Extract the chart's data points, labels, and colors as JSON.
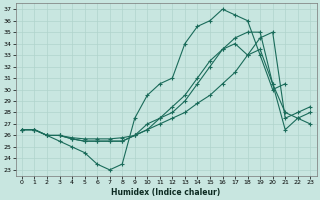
{
  "bg_color": "#c8e6e0",
  "grid_color": "#b0d4cc",
  "line_color": "#1a6b5a",
  "xlabel": "Humidex (Indice chaleur)",
  "xlim": [
    -0.5,
    23.5
  ],
  "ylim": [
    22.5,
    37.5
  ],
  "yticks": [
    23,
    24,
    25,
    26,
    27,
    28,
    29,
    30,
    31,
    32,
    33,
    34,
    35,
    36,
    37
  ],
  "xticks": [
    0,
    1,
    2,
    3,
    4,
    5,
    6,
    7,
    8,
    9,
    10,
    11,
    12,
    13,
    14,
    15,
    16,
    17,
    18,
    19,
    20,
    21,
    22,
    23
  ],
  "lines": [
    {
      "x": [
        0,
        1,
        2,
        3,
        4,
        5,
        6,
        7,
        8,
        9,
        10,
        11,
        12,
        13,
        14,
        15,
        16,
        17,
        18,
        19,
        20,
        21
      ],
      "y": [
        26.5,
        26.5,
        26.0,
        25.5,
        25.0,
        24.5,
        23.5,
        23.0,
        23.5,
        27.5,
        29.5,
        30.5,
        31.0,
        34.0,
        35.5,
        36.0,
        37.0,
        36.5,
        36.0,
        33.0,
        30.0,
        30.5
      ]
    },
    {
      "x": [
        0,
        1,
        2,
        3,
        4,
        5,
        6,
        7,
        8,
        9,
        10,
        11,
        12,
        13,
        14,
        15,
        16,
        17,
        18,
        19,
        20,
        21,
        22,
        23
      ],
      "y": [
        26.5,
        26.5,
        26.0,
        26.0,
        25.7,
        25.5,
        25.5,
        25.5,
        25.5,
        26.0,
        26.5,
        27.5,
        28.5,
        29.5,
        31.0,
        32.5,
        33.5,
        34.0,
        33.0,
        33.5,
        30.5,
        28.0,
        27.5,
        27.0
      ]
    },
    {
      "x": [
        0,
        1,
        2,
        3,
        4,
        5,
        6,
        7,
        8,
        9,
        10,
        11,
        12,
        13,
        14,
        15,
        16,
        17,
        18,
        19,
        20,
        21,
        22,
        23
      ],
      "y": [
        26.5,
        26.5,
        26.0,
        26.0,
        25.7,
        25.5,
        25.5,
        25.5,
        25.5,
        26.0,
        27.0,
        27.5,
        28.0,
        29.0,
        30.5,
        32.0,
        33.5,
        34.5,
        35.0,
        35.0,
        30.5,
        26.5,
        27.5,
        28.0
      ]
    }
  ],
  "line4": {
    "x": [
      0,
      1,
      2,
      3,
      4,
      5,
      6,
      7,
      8,
      9,
      10,
      11,
      12,
      13,
      14,
      15,
      16,
      17,
      18,
      19,
      20,
      21,
      22,
      23
    ],
    "y": [
      26.5,
      26.5,
      26.0,
      26.0,
      25.8,
      25.7,
      25.7,
      25.7,
      25.8,
      26.0,
      26.5,
      27.0,
      27.5,
      28.0,
      28.8,
      29.5,
      30.5,
      31.5,
      33.0,
      34.5,
      35.0,
      27.5,
      28.0,
      28.5
    ]
  }
}
